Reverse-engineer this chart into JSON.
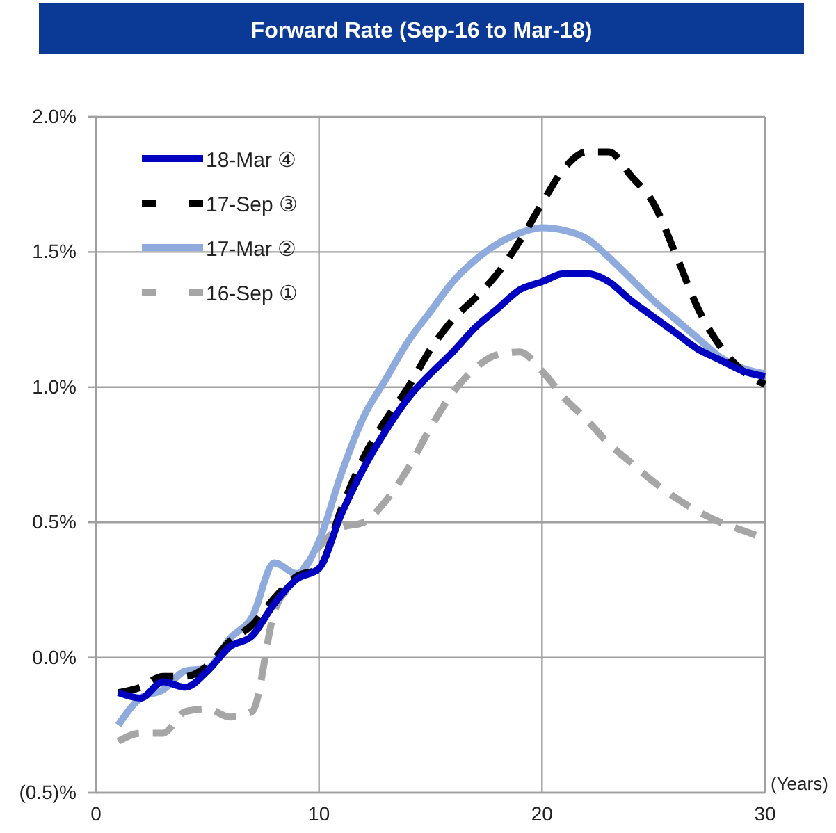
{
  "chart_data": {
    "type": "line",
    "title": "Forward Rate (Sep-16 to Mar-18)",
    "xlabel": "(Years)",
    "x": [
      1,
      2,
      3,
      4,
      5,
      6,
      7,
      8,
      9,
      10,
      11,
      12,
      13,
      14,
      15,
      16,
      17,
      18,
      19,
      20,
      21,
      22,
      23,
      24,
      25,
      26,
      27,
      28,
      29,
      30
    ],
    "xlim": [
      0,
      30
    ],
    "xticks": [
      0,
      10,
      20,
      30
    ],
    "ylim": [
      -0.5,
      2.0
    ],
    "yticks": [
      {
        "value": -0.5,
        "label": "(0.5)%"
      },
      {
        "value": 0,
        "label": "0.0%"
      },
      {
        "value": 0.5,
        "label": "0.5%"
      },
      {
        "value": 1.0,
        "label": "1.0%"
      },
      {
        "value": 1.5,
        "label": "1.5%"
      },
      {
        "value": 2.0,
        "label": "2.0%"
      }
    ],
    "grid": true,
    "legend": "top left",
    "marker": "none",
    "series": [
      {
        "name": "18-Mar ④",
        "color": "#0000c0",
        "line_style": "solid",
        "values": [
          -0.13,
          -0.15,
          -0.09,
          -0.11,
          -0.05,
          0.04,
          0.08,
          0.2,
          0.29,
          0.33,
          0.53,
          0.7,
          0.84,
          0.96,
          1.05,
          1.13,
          1.22,
          1.29,
          1.36,
          1.39,
          1.42,
          1.42,
          1.39,
          1.32,
          1.26,
          1.2,
          1.14,
          1.1,
          1.06,
          1.04
        ]
      },
      {
        "name": "17-Sep ③",
        "color": "#000000",
        "line_style": "dashed",
        "values": [
          -0.13,
          -0.11,
          -0.07,
          -0.07,
          -0.03,
          0.06,
          0.12,
          0.22,
          0.3,
          0.33,
          0.55,
          0.74,
          0.88,
          1.0,
          1.14,
          1.25,
          1.33,
          1.42,
          1.54,
          1.68,
          1.81,
          1.87,
          1.87,
          1.78,
          1.68,
          1.49,
          1.29,
          1.15,
          1.06,
          1.01
        ]
      },
      {
        "name": "17-Mar ②",
        "color": "#8faadc",
        "line_style": "solid",
        "values": [
          -0.25,
          -0.15,
          -0.12,
          -0.05,
          -0.04,
          0.07,
          0.15,
          0.35,
          0.31,
          0.43,
          0.68,
          0.89,
          1.03,
          1.17,
          1.28,
          1.39,
          1.47,
          1.53,
          1.57,
          1.59,
          1.58,
          1.55,
          1.48,
          1.4,
          1.32,
          1.25,
          1.18,
          1.11,
          1.07,
          1.05
        ]
      },
      {
        "name": "16-Sep ①",
        "color": "#a6a6a6",
        "line_style": "dashed",
        "values": [
          -0.31,
          -0.28,
          -0.28,
          -0.2,
          -0.19,
          -0.22,
          -0.2,
          0.17,
          0.29,
          0.41,
          0.48,
          0.5,
          0.58,
          0.7,
          0.85,
          0.98,
          1.07,
          1.12,
          1.13,
          1.06,
          0.96,
          0.88,
          0.79,
          0.72,
          0.65,
          0.59,
          0.54,
          0.5,
          0.47,
          0.44
        ]
      }
    ]
  }
}
